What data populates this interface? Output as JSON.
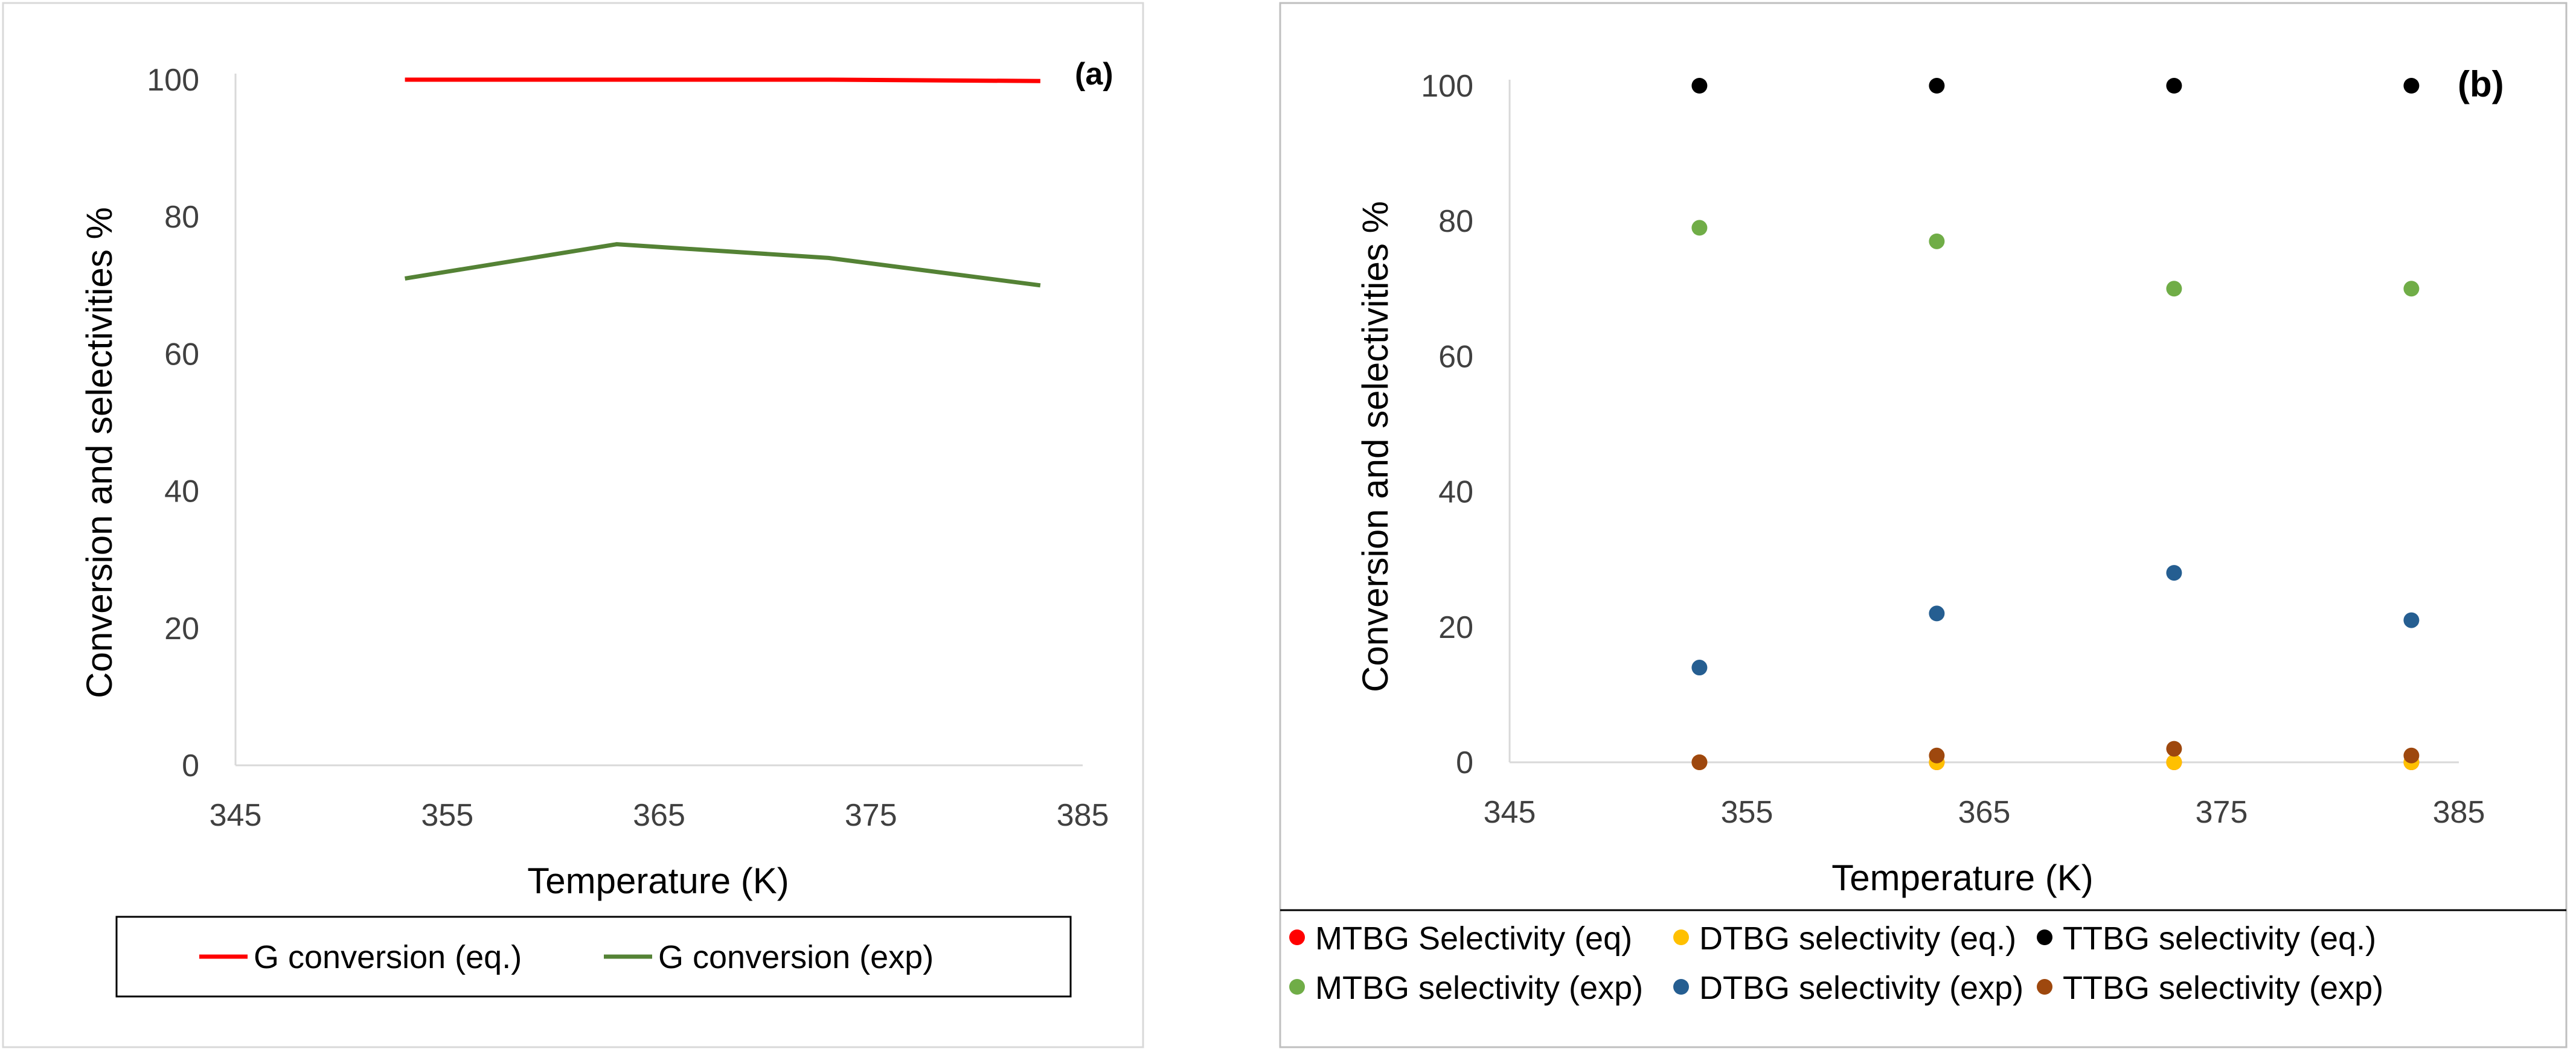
{
  "chart_data": [
    {
      "type": "line",
      "panel_label": "(a)",
      "xlabel": "Temperature (K)",
      "ylabel": "Conversion and selectivities %",
      "xlim": [
        345,
        385
      ],
      "ylim": [
        0,
        100
      ],
      "xticks": [
        345,
        355,
        365,
        375,
        385
      ],
      "yticks": [
        0,
        20,
        40,
        60,
        80,
        100
      ],
      "grid": false,
      "legend_position": "bottom",
      "x": [
        353,
        363,
        373,
        383
      ],
      "series": [
        {
          "name": "G conversion (eq.)",
          "color": "#ff0000",
          "values": [
            100,
            100,
            100,
            99.8
          ]
        },
        {
          "name": "G conversion (exp)",
          "color": "#548235",
          "values": [
            71,
            76,
            74,
            70
          ]
        }
      ]
    },
    {
      "type": "scatter",
      "panel_label": "(b)",
      "xlabel": "Temperature (K)",
      "ylabel": "Conversion and selectivities %",
      "xlim": [
        345,
        385
      ],
      "ylim": [
        0,
        100
      ],
      "xticks": [
        345,
        355,
        365,
        375,
        385
      ],
      "yticks": [
        0,
        20,
        40,
        60,
        80,
        100
      ],
      "grid": false,
      "legend_position": "bottom",
      "x": [
        353,
        363,
        373,
        383
      ],
      "series": [
        {
          "name": "MTBG Selectivity (eq)",
          "color": "#ff0000",
          "values": [
            0,
            0,
            0,
            0
          ]
        },
        {
          "name": "DTBG selectivity (eq.)",
          "color": "#ffc000",
          "values": [
            0,
            0,
            0,
            0
          ]
        },
        {
          "name": "TTBG selectivity (eq.)",
          "color": "#000000",
          "values": [
            100,
            100,
            100,
            100
          ]
        },
        {
          "name": "MTBG selectivity (exp)",
          "color": "#70ad47",
          "values": [
            79,
            77,
            70,
            70
          ]
        },
        {
          "name": "DTBG selectivity (exp)",
          "color": "#255e91",
          "values": [
            14,
            22,
            28,
            21
          ]
        },
        {
          "name": "TTBG selectivity (exp)",
          "color": "#9e480e",
          "values": [
            0,
            1,
            2,
            1
          ]
        }
      ]
    }
  ]
}
